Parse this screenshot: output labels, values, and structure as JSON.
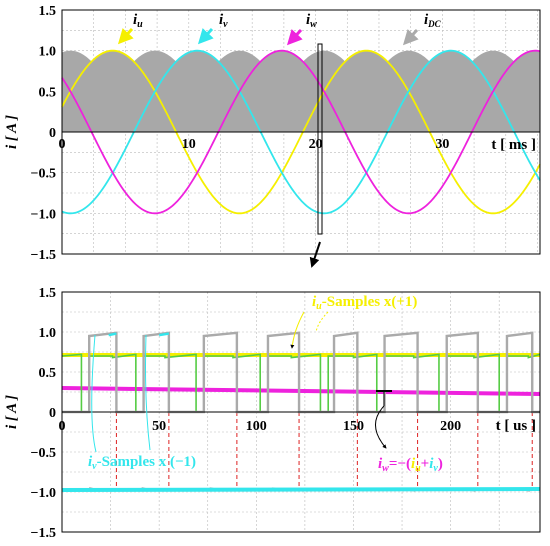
{
  "chart_data": [
    {
      "type": "line",
      "xlabel": "t [ ms ]",
      "ylabel": "i [ A ]",
      "xlim": [
        0,
        37.7
      ],
      "ylim": [
        -1.5,
        1.5
      ],
      "x_ticks": [
        "0",
        "10",
        "20",
        "30"
      ],
      "y_ticks": [
        "1.5",
        "1.0",
        "0.5",
        "0",
        "−0.5",
        "−1.0",
        "−1.5"
      ],
      "grid": true,
      "series": [
        {
          "name": "iu",
          "color": "#f5ef00",
          "function": "cos",
          "amplitude": 1.0,
          "period_ms": 20,
          "peak_at_ms": 4.0
        },
        {
          "name": "iv",
          "color": "#33e6ec",
          "function": "cos",
          "amplitude": 1.0,
          "period_ms": 20,
          "peak_at_ms": 10.67
        },
        {
          "name": "iw",
          "color": "#ee22dd",
          "function": "cos",
          "amplitude": 1.0,
          "period_ms": 20,
          "peak_at_ms": 17.33
        },
        {
          "name": "iDC",
          "color": "#aaaaaa",
          "type": "area",
          "description": "max of |iu|,|iv|,|iw|"
        }
      ],
      "annotations": {
        "iu": {
          "main": "i",
          "sub": "u"
        },
        "iv": {
          "main": "i",
          "sub": "v"
        },
        "iw": {
          "main": "i",
          "sub": "w"
        },
        "idc": {
          "main": "i",
          "sub": "DC"
        }
      }
    },
    {
      "type": "line",
      "xlabel": "t [ us ]",
      "ylabel": "i [ A ]",
      "xlim": [
        0,
        246
      ],
      "ylim": [
        -1.5,
        1.5
      ],
      "x_ticks": [
        "0",
        "50",
        "100",
        "150",
        "200"
      ],
      "y_ticks": [
        "1.5",
        "1.0",
        "0.5",
        "0",
        "−0.5",
        "−1.0",
        "−1.5"
      ],
      "grid": true,
      "levels": {
        "iu": 0.7,
        "iv": -0.97,
        "iw": 0.28,
        "iDC_high": 0.98
      },
      "annotations": {
        "iu_samples": "-Samples x(+1)",
        "iv_samples": "-Samples x (−1)",
        "iw_eq": "=−(",
        "iw_eq_plus": "+",
        "iw_eq_close": ")"
      }
    }
  ]
}
